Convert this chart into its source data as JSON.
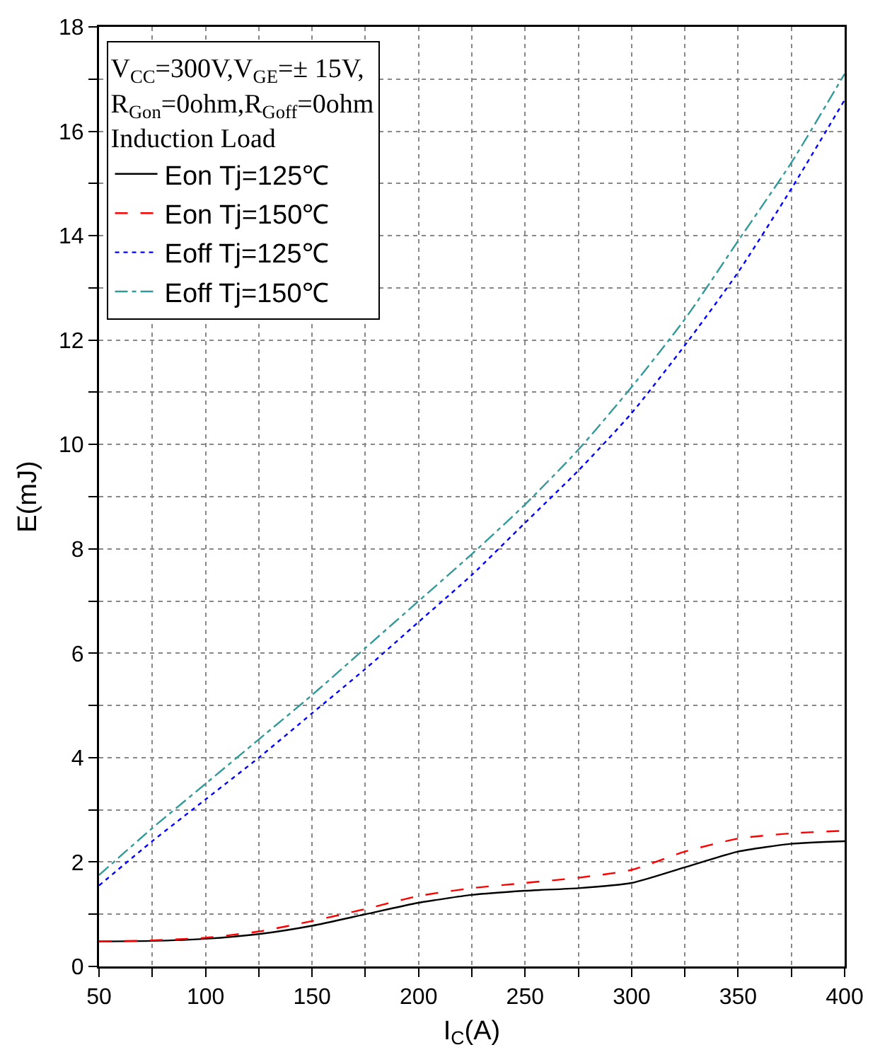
{
  "chart_data": {
    "type": "line",
    "xlabel": "I$_{C}$(A)",
    "ylabel": "E(mJ)",
    "legend_title": "V$_{CC}$=300V,V$_{GE}$=± 15V,\nR$_{Gon}$=0ohm,R$_{Goff}$=0ohm\nInduction Load",
    "legend": "top left",
    "grid": true,
    "marker": "none",
    "x": [
      50,
      75,
      100,
      125,
      150,
      175,
      200,
      225,
      250,
      275,
      300,
      325,
      350,
      375,
      400
    ],
    "xlim": [
      50,
      400
    ],
    "xticks": [
      50,
      {
        "value": 75,
        "label": null
      },
      100,
      {
        "value": 125,
        "label": null
      },
      150,
      {
        "value": 175,
        "label": null
      },
      200,
      {
        "value": 225,
        "label": null
      },
      250,
      {
        "value": 275,
        "label": null
      },
      300,
      {
        "value": 325,
        "label": null
      },
      350,
      {
        "value": 375,
        "label": null
      },
      400
    ],
    "ylim": [
      0,
      18
    ],
    "yticks": [
      0,
      {
        "value": 1,
        "label": null
      },
      2,
      {
        "value": 3,
        "label": null
      },
      4,
      {
        "value": 5,
        "label": null
      },
      6,
      {
        "value": 7,
        "label": null
      },
      8,
      {
        "value": 9,
        "label": null
      },
      10,
      {
        "value": 11,
        "label": null
      },
      12,
      {
        "value": 13,
        "label": null
      },
      14,
      {
        "value": 15,
        "label": null
      },
      16,
      {
        "value": 17,
        "label": null
      },
      18
    ],
    "series": [
      {
        "name": "Eon Tj=125℃",
        "color": "#000000",
        "line_style": "solid",
        "values": [
          0.48,
          0.49,
          0.53,
          0.62,
          0.78,
          1.0,
          1.22,
          1.37,
          1.45,
          1.5,
          1.6,
          1.9,
          2.2,
          2.35,
          2.4
        ]
      },
      {
        "name": "Eon Tj=150℃",
        "color": "#ff0000",
        "line_style": "dashed",
        "values": [
          0.48,
          0.5,
          0.55,
          0.67,
          0.87,
          1.1,
          1.35,
          1.5,
          1.6,
          1.7,
          1.85,
          2.2,
          2.45,
          2.55,
          2.6
        ]
      },
      {
        "name": "Eoff Tj=125℃",
        "color": "#0000ff",
        "line_style": "dotted",
        "values": [
          1.55,
          2.4,
          3.2,
          4.0,
          4.85,
          5.7,
          6.6,
          7.5,
          8.5,
          9.5,
          10.6,
          11.9,
          13.3,
          14.9,
          16.6
        ]
      },
      {
        "name": "Eoff Tj=150℃",
        "color": "#339999",
        "line_style": "dashdot",
        "values": [
          1.75,
          2.65,
          3.5,
          4.35,
          5.2,
          6.1,
          7.0,
          7.9,
          8.85,
          9.9,
          11.1,
          12.4,
          13.9,
          15.4,
          17.1
        ]
      }
    ]
  }
}
